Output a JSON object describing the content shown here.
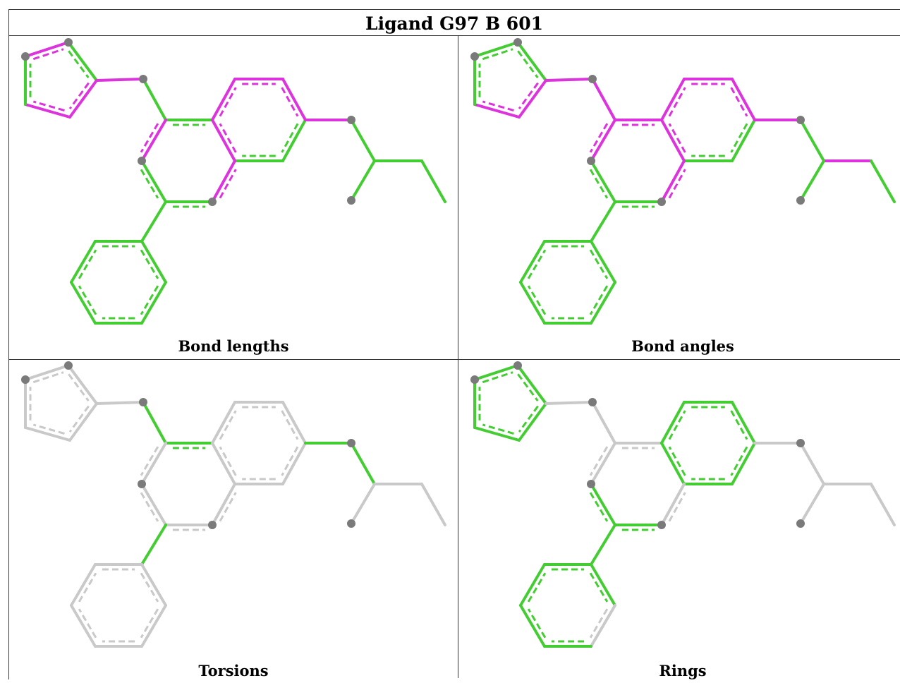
{
  "title": "Ligand G97 B 601",
  "panels": [
    {
      "caption": "Bond lengths",
      "default_color": "#44cc33",
      "highlight_color": "#dd33dd",
      "highlighted_bonds": [
        "2-3",
        "3-4",
        "3-5",
        "6-7",
        "7-8",
        "8-9",
        "11-12",
        "12-13",
        "12-15",
        "2-17",
        "0-1"
      ]
    },
    {
      "caption": "Bond angles",
      "default_color": "#44cc33",
      "highlight_color": "#dd33dd",
      "highlighted_bonds": [
        "0-4",
        "1-0",
        "2-3",
        "3-4",
        "3-5",
        "4-5",
        "5-6",
        "5-17",
        "6-7",
        "7-8",
        "8-9",
        "11-12",
        "12-13",
        "12-15",
        "2-17",
        "17-18",
        "18-19",
        "14-15"
      ]
    },
    {
      "caption": "Torsions",
      "default_color": "#c9c9c9",
      "highlight_color": "#44cc33",
      "highlighted_bonds": [
        "4-5",
        "5-6",
        "12-13",
        "13-14",
        "20-21",
        "17-18"
      ]
    },
    {
      "caption": "Rings",
      "default_color": "#c9c9c9",
      "highlight_color": "#44cc33",
      "highlighted_bonds": [
        "0-1",
        "1-2",
        "2-3",
        "3-4",
        "4-0",
        "6-7",
        "7-8",
        "8-9",
        "9-10",
        "10-11",
        "11-12",
        "12-6",
        "6-15",
        "15-16",
        "16-17",
        "17-18",
        "18-11",
        "19-20",
        "20-21",
        "21-22",
        "22-23",
        "23-24",
        "24-19"
      ]
    }
  ]
}
